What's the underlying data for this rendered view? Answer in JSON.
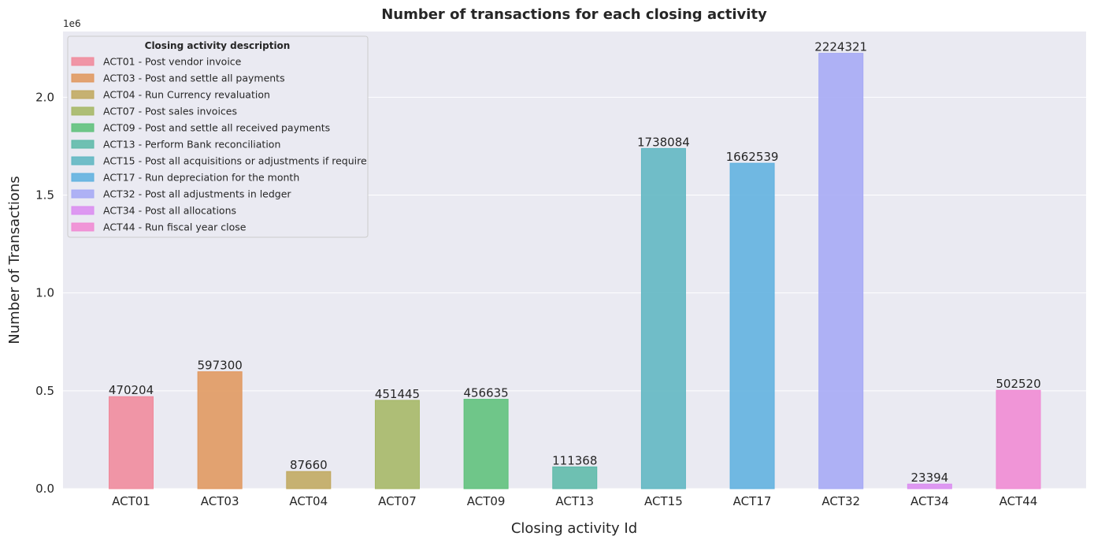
{
  "chart_data": {
    "type": "bar",
    "title": "Number of transactions for each closing activity",
    "xlabel": "Closing activity Id",
    "ylabel": "Number of Transactions",
    "y_scale_label": "1e6",
    "y_scale": 1000000,
    "ylim": [
      0,
      2335537
    ],
    "yticks": [
      0,
      500000,
      1000000,
      1500000,
      2000000
    ],
    "ytick_labels": [
      "0.0",
      "0.5",
      "1.0",
      "1.5",
      "2.0"
    ],
    "grid": true,
    "legend_placement": "top-left",
    "legend_title": "Closing activity description",
    "categories": [
      "ACT01",
      "ACT03",
      "ACT04",
      "ACT07",
      "ACT09",
      "ACT13",
      "ACT15",
      "ACT17",
      "ACT32",
      "ACT34",
      "ACT44"
    ],
    "values": [
      470204,
      597300,
      87660,
      451445,
      456635,
      111368,
      1738084,
      1662539,
      2224321,
      23394,
      502520
    ],
    "data_labels": [
      "470204",
      "597300",
      "87660",
      "451445",
      "456635",
      "111368",
      "1738084",
      "1662539",
      "2224321",
      "23394",
      "502520"
    ],
    "legend_entries": [
      "ACT01 - Post vendor invoice",
      "ACT03 - Post and settle all payments",
      "ACT04 - Run Currency revaluation",
      "ACT07 - Post sales invoices",
      "ACT09 - Post and settle all received payments",
      "ACT13 - Perform Bank reconciliation",
      "ACT15 - Post all acquisitions or adjustments if require",
      "ACT17 - Run depreciation for the month",
      "ACT32 - Post all adjustments in ledger",
      "ACT34 - Post all allocations",
      "ACT44 - Run fiscal year close"
    ],
    "colors": [
      "#f0899b",
      "#e0975d",
      "#c0a85e",
      "#a5b764",
      "#5dc07a",
      "#5cb9a8",
      "#5eb6c1",
      "#5fb1df",
      "#a5a9f5",
      "#db8cf0",
      "#f089d3"
    ],
    "plot_background": "#eaeaf2"
  }
}
